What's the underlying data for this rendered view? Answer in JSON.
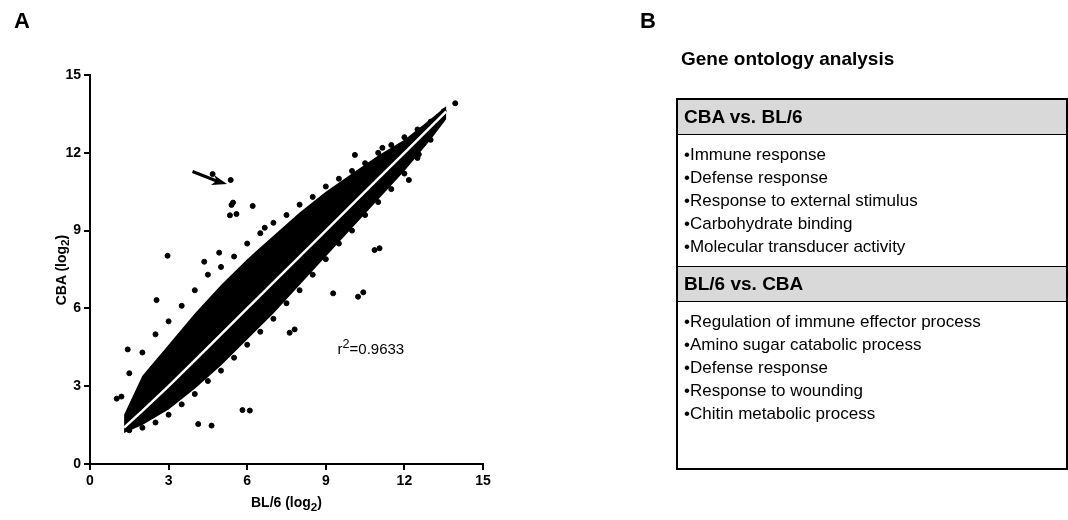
{
  "chart_data": [
    {
      "type": "scatter",
      "xlabel": "BL/6 (log$_{2}$)",
      "ylabel": "CBA (log$_{2}$)",
      "xlim": [
        0,
        15
      ],
      "ylim": [
        0,
        15
      ],
      "xticks": [
        0,
        3,
        6,
        9,
        12,
        15
      ],
      "yticks": [
        0,
        3,
        6,
        9,
        12,
        15
      ],
      "annotations": [
        "A",
        "r$^{2}$=0.9633"
      ],
      "series": [
        {
          "type": "scatter",
          "color": "#000000",
          "marker": "circle",
          "x": [
            1.2,
            1.5,
            2,
            2.5,
            3,
            3.5,
            4,
            4.5,
            5,
            5.5,
            6,
            6.5,
            7,
            7.5,
            8,
            8.5,
            9,
            9.5,
            10,
            10.5,
            11,
            11.5,
            12,
            12.5,
            13,
            13.5,
            1.5,
            2,
            2.5,
            3,
            3.5,
            4,
            4.5,
            5,
            5.5,
            6,
            6.5,
            7,
            7.5,
            8,
            8.5,
            9,
            9.5,
            10,
            10.5,
            11,
            11.5,
            12,
            12.5,
            13,
            4.68,
            5.37,
            5.46,
            5.4,
            5.34,
            5.59,
            6.21,
            2.96,
            10.11,
            12.17,
            10.86,
            11.05,
            10.23,
            10.43,
            9.28,
            5.82,
            6.1,
            4.64,
            4.13,
            1.44,
            1.02,
            2.54,
            13.94,
            12.55,
            11.16,
            7.81,
            7.62,
            4.93,
            4.36,
            6.67
          ],
          "values": [
            2.6,
            3.5,
            4.3,
            5.0,
            5.5,
            6.1,
            6.7,
            7.3,
            7.6,
            8.0,
            8.5,
            8.9,
            9.3,
            9.6,
            10.0,
            10.3,
            10.7,
            11.0,
            11.3,
            11.6,
            12.0,
            12.3,
            12.6,
            12.9,
            13.2,
            13.6,
            1.3,
            1.4,
            1.6,
            1.9,
            2.3,
            2.7,
            3.2,
            3.6,
            4.1,
            4.6,
            5.1,
            5.6,
            6.2,
            6.7,
            7.3,
            7.9,
            8.5,
            9.0,
            9.6,
            10.1,
            10.6,
            11.2,
            11.8,
            12.5,
            11.18,
            10.95,
            10.08,
            9.99,
            9.59,
            9.64,
            9.95,
            8.03,
            11.92,
            10.95,
            8.25,
            8.32,
            6.45,
            6.62,
            6.58,
            2.08,
            2.06,
            1.48,
            1.54,
            4.42,
            2.52,
            6.32,
            13.91,
            11.94,
            12.19,
            5.19,
            5.06,
            8.15,
            7.8,
            9.11
          ]
        },
        {
          "type": "line",
          "color": "#ffffff",
          "marker": "none",
          "x": [
            1.3,
            2,
            3,
            4,
            5,
            6,
            7,
            8,
            9,
            10,
            11,
            12,
            13,
            13.6
          ],
          "values": [
            1.4,
            2.05,
            3.0,
            4.0,
            5.0,
            6.0,
            7.0,
            8.0,
            9.0,
            10.0,
            11.0,
            12.0,
            13.0,
            13.6
          ],
          "lower": [
            1.2,
            1.5,
            2.1,
            2.9,
            3.8,
            4.8,
            5.8,
            6.9,
            8.0,
            9.1,
            10.2,
            11.3,
            12.5,
            13.3
          ],
          "upper": [
            1.9,
            3.4,
            4.6,
            5.8,
            6.9,
            7.9,
            8.8,
            9.7,
            10.5,
            11.2,
            11.9,
            12.5,
            13.3,
            13.8
          ]
        }
      ]
    },
    {
      "type": "other",
      "title": "Gene ontology analysis",
      "categories": [
        "CBA vs. BL/6",
        "BL/6 vs. CBA"
      ],
      "annotations": [
        "B",
        "•Immune response",
        "•Defense response",
        "•Response to external stimulus",
        "•Carbohydrate binding",
        "•Molecular transducer activity",
        "•Regulation of immune effector process",
        "•Amino sugar catabolic process",
        "•Defense response",
        "•Response to wounding",
        "•Chitin metabolic process"
      ]
    }
  ]
}
